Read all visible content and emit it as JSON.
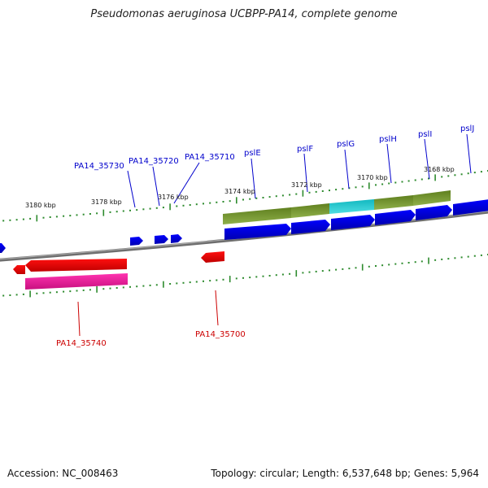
{
  "title": "Pseudomonas aeruginosa UCBPP-PA14, complete genome",
  "footer": {
    "accession": "Accession: NC_008463",
    "summary": "Topology: circular; Length: 6,537,648 bp; Genes: 5,964"
  },
  "colors": {
    "backbone": "#808080",
    "forward_gene": "#0000e6",
    "reverse_gene": "#ee0000",
    "pink_feature": "#e8189a",
    "olive_feature": "#6b8e23",
    "cyan_feature": "#19c6cc",
    "tick": "#2e8b2e",
    "forward_label": "#0000cc",
    "reverse_label": "#cc0000"
  },
  "scale_labels": [
    "3180 kbp",
    "3178 kbp",
    "3176 kbp",
    "3174 kbp",
    "3172 kbp",
    "3170 kbp",
    "3168 kbp"
  ],
  "forward_labels": [
    "PA14_35730",
    "PA14_35720",
    "PA14_35710",
    "pslE",
    "pslF",
    "pslG",
    "pslH",
    "pslI",
    "pslJ"
  ],
  "reverse_labels": [
    "PA14_35740",
    "PA14_35700"
  ]
}
